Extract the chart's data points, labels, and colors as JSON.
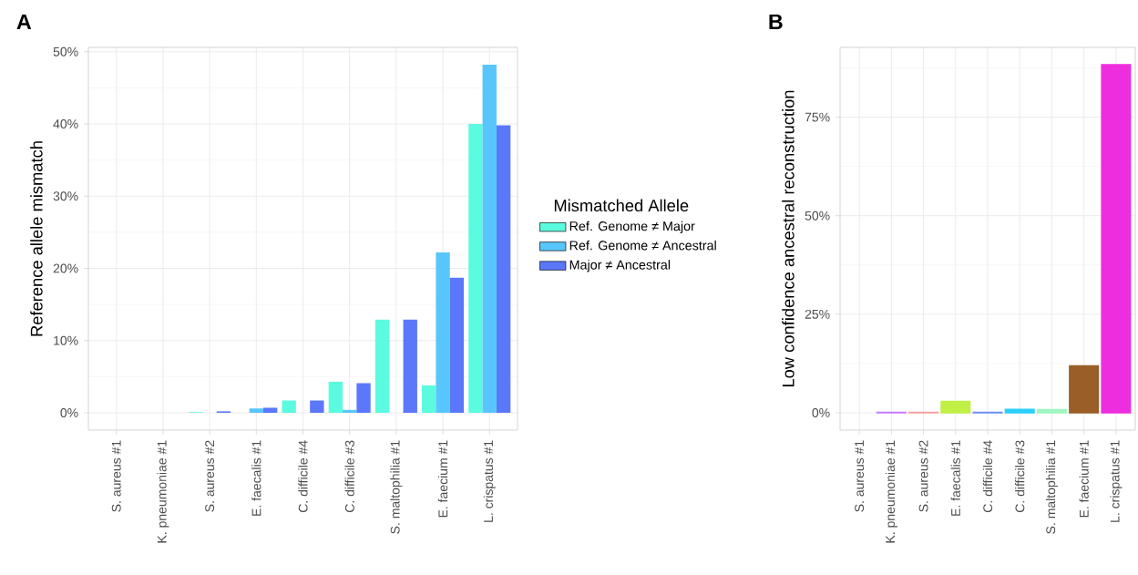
{
  "chart_data": [
    {
      "type": "bar",
      "ylabel": "Reference allele mismatch",
      "legend_title": "Mismatched Allele",
      "annotations": [
        "A"
      ],
      "categories": [
        "S. aureus #1",
        "K. pneumoniae #1",
        "S. aureus #2",
        "E. faecalis #1",
        "C. difficile #4",
        "C. difficile #3",
        "S. maltophilia #1",
        "E. faecium #1",
        "L. crispatus #1"
      ],
      "series": [
        {
          "name": "Ref. Genome ≠ Major",
          "color": "#5afbdf",
          "values": [
            0,
            0,
            0.1,
            0,
            1.7,
            4.3,
            12.9,
            3.8,
            40.0
          ]
        },
        {
          "name": "Ref. Genome ≠ Ancestral",
          "color": "#58c6fc",
          "values": [
            0,
            0,
            0,
            0.6,
            0,
            0.4,
            0,
            22.2,
            48.2
          ]
        },
        {
          "name": "Major ≠ Ancestral",
          "color": "#5b78fb",
          "values": [
            0,
            0,
            0.2,
            0.7,
            1.7,
            4.1,
            12.9,
            18.7,
            39.8
          ]
        }
      ],
      "ylim": [
        -2.4,
        50.6
      ],
      "yticks": [
        {
          "value": 0,
          "label": "0%"
        },
        {
          "value": 10,
          "label": "10%"
        },
        {
          "value": 20,
          "label": "20%"
        },
        {
          "value": 30,
          "label": "30%"
        },
        {
          "value": 40,
          "label": "40%"
        },
        {
          "value": 50,
          "label": "50%"
        }
      ],
      "grid": true,
      "legend": "right"
    },
    {
      "type": "bar",
      "ylabel": "Low confidence ancestral reconstruction",
      "annotations": [
        "B"
      ],
      "categories": [
        "S. aureus #1",
        "K. pneumoniae #1",
        "S. aureus #2",
        "E. faecalis #1",
        "C. difficile #4",
        "C. difficile #3",
        "S. maltophilia #1",
        "E. faecium #1",
        "L. crispatus #1"
      ],
      "values": [
        0,
        0.1,
        0.1,
        2.9,
        0.1,
        0.9,
        0.8,
        11.9,
        88.3
      ],
      "colors": [
        "#f8766d",
        "#c77cff",
        "#f8a0a0",
        "#c0ef45",
        "#6c8ef8",
        "#2ad0f8",
        "#a0f5c0",
        "#9a5e28",
        "#ee2ddf"
      ],
      "ylim": [
        -4.4,
        92.7
      ],
      "yticks": [
        {
          "value": 0,
          "label": "0%"
        },
        {
          "value": 25,
          "label": "25%"
        },
        {
          "value": 50,
          "label": "50%"
        },
        {
          "value": 75,
          "label": "75%"
        }
      ],
      "grid": true
    }
  ]
}
